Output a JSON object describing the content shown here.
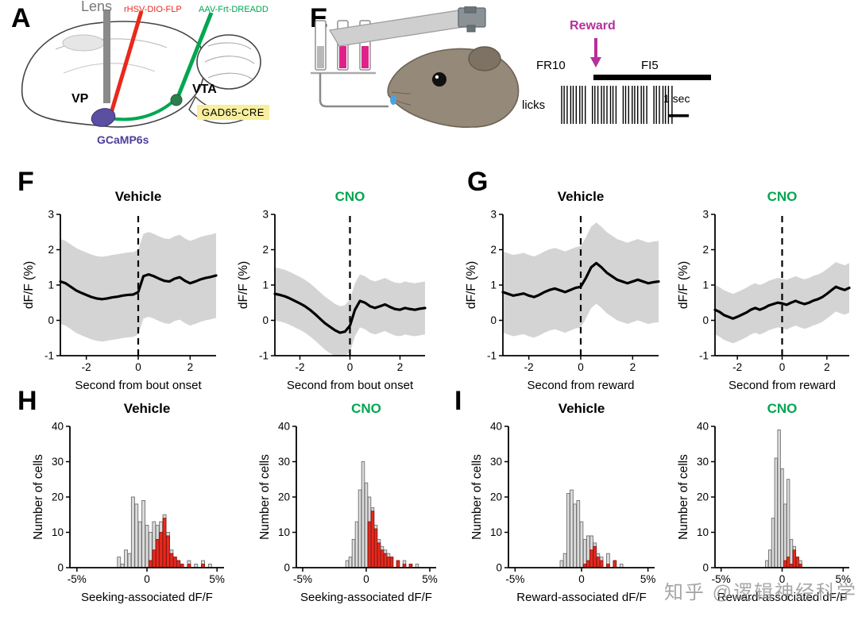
{
  "panels": {
    "A": {
      "letter": "A",
      "labels": {
        "lens": "Lens",
        "virus_red": "rHSV-DIO-FLP",
        "virus_green": "AAV-Frt-DREADD",
        "vp": "VP",
        "vta": "VTA",
        "gad": "GAD65-CRE",
        "gcamp": "GCaMP6s"
      }
    },
    "E": {
      "letter": "E",
      "reward": "Reward",
      "fr10": "FR10",
      "fi5": "FI5",
      "licks": "licks",
      "scale": "1 sec",
      "lick_ticks": 34
    },
    "F": {
      "letter": "F"
    },
    "G": {
      "letter": "G"
    },
    "H": {
      "letter": "H"
    },
    "I": {
      "letter": "I"
    }
  },
  "colors": {
    "red": "#e8291c",
    "green": "#00a651",
    "magenta": "#b5309b",
    "purple": "#4a3f99",
    "band_gray": "#cfcfcf",
    "bar_gray": "#dcdcdc",
    "bar_red": "#e8291c",
    "gad_yellow": "#f7ef9e"
  },
  "watermark": {
    "text": "知乎 @逻辑神经科学"
  },
  "chart_data": [
    {
      "id": "F-vehicle",
      "type": "line",
      "title": "Vehicle",
      "title_color": "#000000",
      "xlabel": "Second from bout onset",
      "ylabel": "dF/F (%)",
      "xlim": [
        -3,
        3
      ],
      "ylim": [
        -1,
        3
      ],
      "xticks": [
        -2,
        0,
        2
      ],
      "yticks": [
        -1,
        0,
        1,
        2,
        3
      ],
      "event_line_x": 0,
      "x_start": -3,
      "x_step": 0.2,
      "band_halfwidth": 1.2,
      "y": [
        1.1,
        1.05,
        0.95,
        0.85,
        0.78,
        0.72,
        0.66,
        0.62,
        0.6,
        0.62,
        0.65,
        0.67,
        0.7,
        0.72,
        0.73,
        0.8,
        1.25,
        1.3,
        1.25,
        1.18,
        1.12,
        1.1,
        1.18,
        1.22,
        1.12,
        1.05,
        1.1,
        1.16,
        1.2,
        1.23,
        1.27
      ]
    },
    {
      "id": "F-cno",
      "type": "line",
      "title": "CNO",
      "title_color": "#00a651",
      "xlabel": "Second from bout onset",
      "ylabel": "dF/F (%)",
      "xlim": [
        -3,
        3
      ],
      "ylim": [
        -1,
        3
      ],
      "xticks": [
        -2,
        0,
        2
      ],
      "yticks": [
        -1,
        0,
        1,
        2,
        3
      ],
      "event_line_x": 0,
      "x_start": -3,
      "x_step": 0.2,
      "band_halfwidth": 0.75,
      "y": [
        0.75,
        0.72,
        0.68,
        0.62,
        0.55,
        0.48,
        0.4,
        0.3,
        0.18,
        0.05,
        -0.08,
        -0.18,
        -0.28,
        -0.35,
        -0.32,
        -0.15,
        0.3,
        0.55,
        0.5,
        0.4,
        0.35,
        0.4,
        0.45,
        0.38,
        0.32,
        0.3,
        0.35,
        0.32,
        0.3,
        0.33,
        0.35
      ]
    },
    {
      "id": "G-vehicle",
      "type": "line",
      "title": "Vehicle",
      "title_color": "#000000",
      "xlabel": "Second from reward",
      "ylabel": "dF/F (%)",
      "xlim": [
        -3,
        3
      ],
      "ylim": [
        -1,
        3
      ],
      "xticks": [
        -2,
        0,
        2
      ],
      "yticks": [
        -1,
        0,
        1,
        2,
        3
      ],
      "event_line_x": 0,
      "x_start": -3,
      "x_step": 0.2,
      "band_halfwidth": 1.15,
      "y": [
        0.8,
        0.75,
        0.7,
        0.73,
        0.76,
        0.7,
        0.66,
        0.72,
        0.8,
        0.86,
        0.9,
        0.85,
        0.8,
        0.86,
        0.92,
        0.95,
        1.2,
        1.5,
        1.62,
        1.5,
        1.35,
        1.25,
        1.15,
        1.1,
        1.05,
        1.1,
        1.15,
        1.1,
        1.05,
        1.08,
        1.1
      ]
    },
    {
      "id": "G-cno",
      "type": "line",
      "title": "CNO",
      "title_color": "#00a651",
      "xlabel": "Second from reward",
      "ylabel": "dF/F (%)",
      "xlim": [
        -3,
        3
      ],
      "ylim": [
        -1,
        3
      ],
      "xticks": [
        -2,
        0,
        2
      ],
      "yticks": [
        -1,
        0,
        1,
        2,
        3
      ],
      "event_line_x": 0,
      "x_start": -3,
      "x_step": 0.2,
      "band_halfwidth": 0.7,
      "y": [
        0.3,
        0.24,
        0.15,
        0.1,
        0.05,
        0.1,
        0.16,
        0.22,
        0.3,
        0.35,
        0.3,
        0.35,
        0.42,
        0.46,
        0.5,
        0.48,
        0.44,
        0.5,
        0.55,
        0.5,
        0.46,
        0.5,
        0.56,
        0.6,
        0.66,
        0.75,
        0.85,
        0.95,
        0.9,
        0.86,
        0.92
      ]
    },
    {
      "id": "H-vehicle",
      "type": "bar",
      "title": "Vehicle",
      "title_color": "#000000",
      "xlabel": "Seeking-associated dF/F",
      "ylabel": "Number of cells",
      "xlim": [
        -5.5,
        5.5
      ],
      "ylim": [
        0,
        40
      ],
      "xticks": [
        -5,
        0,
        5
      ],
      "xtick_labels": [
        "-5%",
        "0",
        "5%"
      ],
      "yticks": [
        0,
        10,
        20,
        30,
        40
      ],
      "bin_width": 0.25,
      "bins": [
        {
          "x": -2,
          "gray": 3,
          "red": 0
        },
        {
          "x": -1.75,
          "gray": 1,
          "red": 0
        },
        {
          "x": -1.5,
          "gray": 5,
          "red": 0
        },
        {
          "x": -1.25,
          "gray": 4,
          "red": 0
        },
        {
          "x": -1,
          "gray": 20,
          "red": 0
        },
        {
          "x": -0.75,
          "gray": 18,
          "red": 0
        },
        {
          "x": -0.5,
          "gray": 13,
          "red": 0
        },
        {
          "x": -0.25,
          "gray": 19,
          "red": 0
        },
        {
          "x": 0,
          "gray": 12,
          "red": 0
        },
        {
          "x": 0.25,
          "gray": 10,
          "red": 2
        },
        {
          "x": 0.5,
          "gray": 13,
          "red": 5
        },
        {
          "x": 0.75,
          "gray": 12,
          "red": 8
        },
        {
          "x": 1,
          "gray": 13,
          "red": 10
        },
        {
          "x": 1.25,
          "gray": 15,
          "red": 14
        },
        {
          "x": 1.5,
          "gray": 10,
          "red": 9
        },
        {
          "x": 1.75,
          "gray": 5,
          "red": 4
        },
        {
          "x": 2,
          "gray": 3,
          "red": 3
        },
        {
          "x": 2.25,
          "gray": 2,
          "red": 2
        },
        {
          "x": 2.5,
          "gray": 1,
          "red": 1
        },
        {
          "x": 3,
          "gray": 2,
          "red": 1
        },
        {
          "x": 3.5,
          "gray": 1,
          "red": 0
        },
        {
          "x": 4,
          "gray": 2,
          "red": 1
        },
        {
          "x": 4.5,
          "gray": 1,
          "red": 0
        }
      ]
    },
    {
      "id": "H-cno",
      "type": "bar",
      "title": "CNO",
      "title_color": "#00a651",
      "xlabel": "Seeking-associated dF/F",
      "ylabel": "Number of cells",
      "xlim": [
        -5.5,
        5.5
      ],
      "ylim": [
        0,
        40
      ],
      "xticks": [
        -5,
        0,
        5
      ],
      "xtick_labels": [
        "-5%",
        "0",
        "5%"
      ],
      "yticks": [
        0,
        10,
        20,
        30,
        40
      ],
      "bin_width": 0.25,
      "bins": [
        {
          "x": -1.5,
          "gray": 2,
          "red": 0
        },
        {
          "x": -1.25,
          "gray": 3,
          "red": 0
        },
        {
          "x": -1,
          "gray": 8,
          "red": 0
        },
        {
          "x": -0.75,
          "gray": 13,
          "red": 0
        },
        {
          "x": -0.5,
          "gray": 22,
          "red": 0
        },
        {
          "x": -0.25,
          "gray": 30,
          "red": 0
        },
        {
          "x": 0,
          "gray": 24,
          "red": 0
        },
        {
          "x": 0.25,
          "gray": 20,
          "red": 13
        },
        {
          "x": 0.5,
          "gray": 17,
          "red": 16
        },
        {
          "x": 0.75,
          "gray": 12,
          "red": 11
        },
        {
          "x": 1,
          "gray": 8,
          "red": 7
        },
        {
          "x": 1.25,
          "gray": 6,
          "red": 5
        },
        {
          "x": 1.5,
          "gray": 5,
          "red": 4
        },
        {
          "x": 1.75,
          "gray": 4,
          "red": 3
        },
        {
          "x": 2,
          "gray": 3,
          "red": 3
        },
        {
          "x": 2.5,
          "gray": 2,
          "red": 2
        },
        {
          "x": 3,
          "gray": 2,
          "red": 1
        },
        {
          "x": 3.5,
          "gray": 1,
          "red": 1
        },
        {
          "x": 4,
          "gray": 1,
          "red": 0
        }
      ]
    },
    {
      "id": "I-vehicle",
      "type": "bar",
      "title": "Vehicle",
      "title_color": "#000000",
      "xlabel": "Reward-associated dF/F",
      "ylabel": "Number of cells",
      "xlim": [
        -5.5,
        5.5
      ],
      "ylim": [
        0,
        40
      ],
      "xticks": [
        -5,
        0,
        5
      ],
      "xtick_labels": [
        "-5%",
        "0",
        "5%"
      ],
      "yticks": [
        0,
        10,
        20,
        30,
        40
      ],
      "bin_width": 0.25,
      "bins": [
        {
          "x": -1.5,
          "gray": 2,
          "red": 0
        },
        {
          "x": -1.25,
          "gray": 4,
          "red": 0
        },
        {
          "x": -1,
          "gray": 21,
          "red": 0
        },
        {
          "x": -0.75,
          "gray": 22,
          "red": 0
        },
        {
          "x": -0.5,
          "gray": 18,
          "red": 0
        },
        {
          "x": -0.25,
          "gray": 19,
          "red": 0
        },
        {
          "x": 0,
          "gray": 13,
          "red": 0
        },
        {
          "x": 0.25,
          "gray": 8,
          "red": 1
        },
        {
          "x": 0.5,
          "gray": 9,
          "red": 2
        },
        {
          "x": 0.75,
          "gray": 9,
          "red": 5
        },
        {
          "x": 1,
          "gray": 7,
          "red": 6
        },
        {
          "x": 1.25,
          "gray": 4,
          "red": 3
        },
        {
          "x": 1.5,
          "gray": 3,
          "red": 2
        },
        {
          "x": 2,
          "gray": 4,
          "red": 1
        },
        {
          "x": 2.5,
          "gray": 2,
          "red": 2
        },
        {
          "x": 3,
          "gray": 1,
          "red": 0
        }
      ]
    },
    {
      "id": "I-cno",
      "type": "bar",
      "title": "CNO",
      "title_color": "#00a651",
      "xlabel": "Reward-associated dF/F",
      "ylabel": "Number of cells",
      "xlim": [
        -5.5,
        5.5
      ],
      "ylim": [
        0,
        40
      ],
      "xticks": [
        -5,
        0,
        5
      ],
      "xtick_labels": [
        "-5%",
        "0",
        "5%"
      ],
      "yticks": [
        0,
        10,
        20,
        30,
        40
      ],
      "bin_width": 0.25,
      "bins": [
        {
          "x": -1.25,
          "gray": 2,
          "red": 0
        },
        {
          "x": -1,
          "gray": 5,
          "red": 0
        },
        {
          "x": -0.75,
          "gray": 14,
          "red": 0
        },
        {
          "x": -0.5,
          "gray": 31,
          "red": 0
        },
        {
          "x": -0.25,
          "gray": 39,
          "red": 0
        },
        {
          "x": 0,
          "gray": 28,
          "red": 0
        },
        {
          "x": 0.25,
          "gray": 18,
          "red": 2
        },
        {
          "x": 0.5,
          "gray": 25,
          "red": 3
        },
        {
          "x": 0.75,
          "gray": 8,
          "red": 1
        },
        {
          "x": 1,
          "gray": 6,
          "red": 5
        },
        {
          "x": 1.25,
          "gray": 3,
          "red": 3
        },
        {
          "x": 1.5,
          "gray": 2,
          "red": 1
        }
      ]
    }
  ]
}
